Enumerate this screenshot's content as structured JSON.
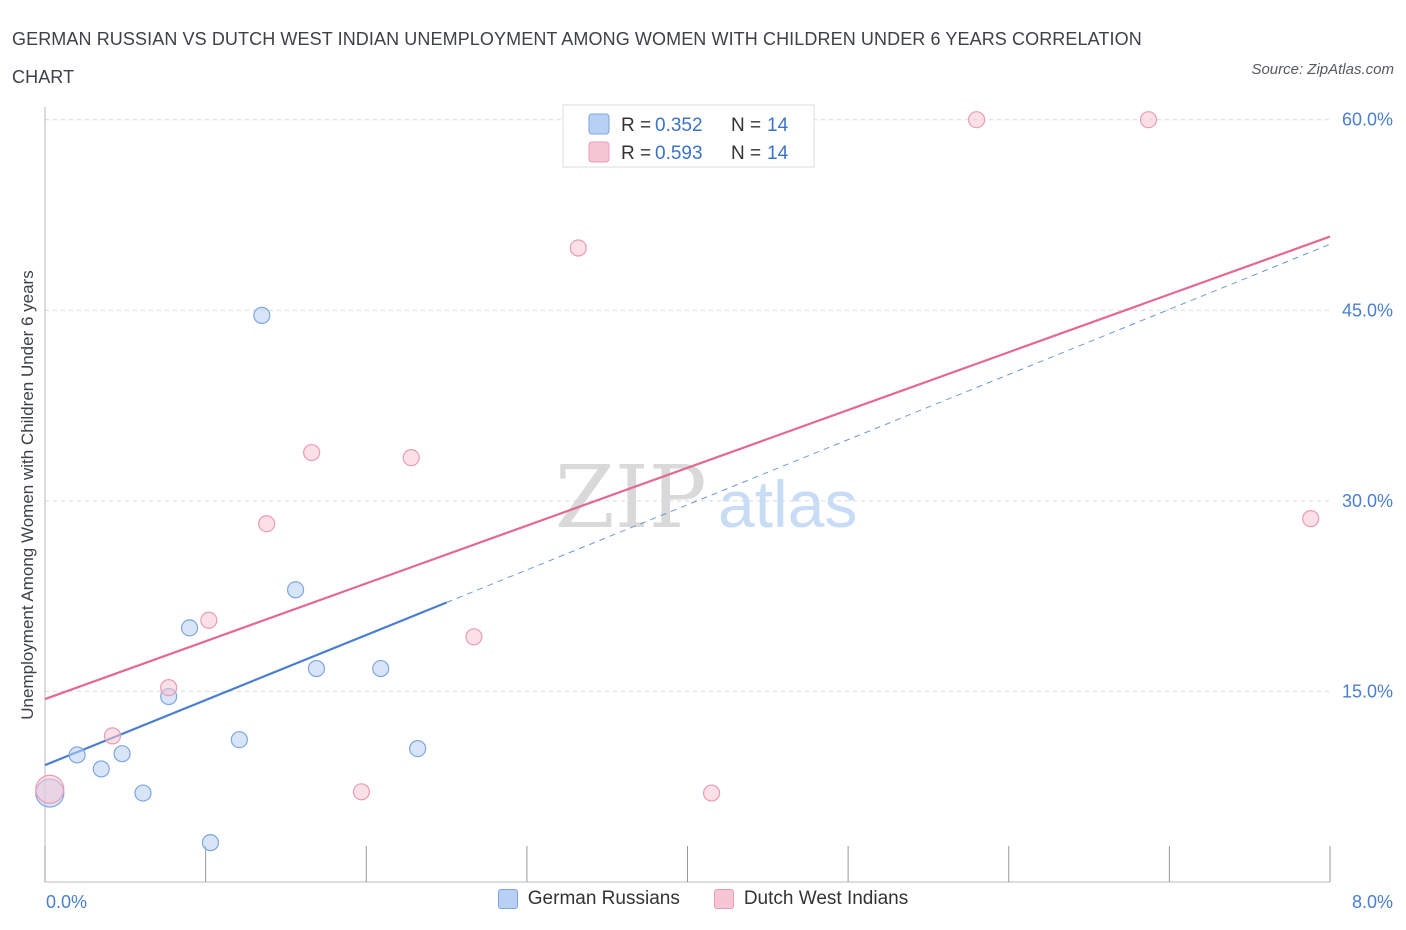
{
  "title": "GERMAN RUSSIAN VS DUTCH WEST INDIAN UNEMPLOYMENT AMONG WOMEN WITH CHILDREN UNDER 6 YEARS CORRELATION CHART",
  "source": "Source: ZipAtlas.com",
  "watermark": {
    "zip": "ZIP",
    "atlas": "atlas"
  },
  "colors": {
    "blue": "#4a7fd0",
    "blue_fill": "#b8d0f3",
    "pink": "#e2698f",
    "pink_fill": "#f7c6d4"
  },
  "legend": {
    "rows": [
      {
        "r_label": "R = ",
        "r_value": "0.352",
        "n_label": "N = ",
        "n_value": "14"
      },
      {
        "r_label": "R = ",
        "r_value": "0.593",
        "n_label": "N = ",
        "n_value": "14"
      }
    ]
  },
  "bottom_legend": [
    "German Russians",
    "Dutch West Indians"
  ],
  "chart_data": {
    "type": "scatter",
    "title": "GERMAN RUSSIAN VS DUTCH WEST INDIAN UNEMPLOYMENT AMONG WOMEN WITH CHILDREN UNDER 6 YEARS CORRELATION CHART",
    "xlabel": "",
    "ylabel": "Unemployment Among Women with Children Under 6 years",
    "xlim": [
      0,
      8
    ],
    "ylim": [
      0,
      61
    ],
    "x_tick_labels": [
      "0.0%",
      "8.0%"
    ],
    "y_ticks": [
      15,
      30,
      45,
      60
    ],
    "y_tick_labels": [
      "15.0%",
      "30.0%",
      "45.0%",
      "60.0%"
    ],
    "series": [
      {
        "name": "German Russians",
        "r": 0.352,
        "n": 14,
        "points": [
          [
            0.03,
            7.0
          ],
          [
            0.2,
            10.0
          ],
          [
            0.35,
            8.9
          ],
          [
            0.48,
            10.1
          ],
          [
            0.61,
            7.0
          ],
          [
            0.77,
            14.6
          ],
          [
            0.9,
            20.0
          ],
          [
            1.03,
            3.1
          ],
          [
            1.21,
            11.2
          ],
          [
            1.35,
            44.6
          ],
          [
            1.56,
            23.0
          ],
          [
            1.69,
            16.8
          ],
          [
            2.09,
            16.8
          ],
          [
            2.32,
            10.5
          ]
        ],
        "trend": {
          "x": [
            0.0,
            2.5
          ],
          "y": [
            9.2,
            22.0
          ]
        },
        "trend_dashed": {
          "x": [
            2.5,
            8.0
          ],
          "y": [
            22.0,
            50.2
          ]
        }
      },
      {
        "name": "Dutch West Indians",
        "r": 0.593,
        "n": 14,
        "points": [
          [
            0.03,
            7.3
          ],
          [
            0.42,
            11.5
          ],
          [
            0.77,
            15.3
          ],
          [
            1.02,
            20.6
          ],
          [
            1.38,
            28.2
          ],
          [
            1.66,
            33.8
          ],
          [
            1.97,
            7.1
          ],
          [
            2.28,
            33.4
          ],
          [
            2.67,
            19.3
          ],
          [
            3.32,
            49.9
          ],
          [
            4.15,
            7.0
          ],
          [
            5.8,
            60.0
          ],
          [
            6.87,
            60.0
          ],
          [
            7.88,
            28.6
          ]
        ],
        "trend": {
          "x": [
            0.0,
            8.0
          ],
          "y": [
            14.4,
            50.8
          ]
        }
      }
    ]
  }
}
